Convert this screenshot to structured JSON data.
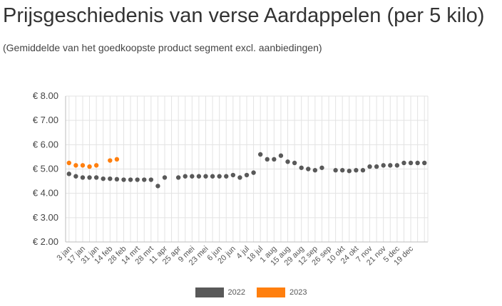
{
  "header": {
    "title": "Prijsgeschiedenis van verse Aardappelen (per 5 kilo)",
    "subtitle": "(Gemiddelde van het goedkoopste product segment excl. aanbiedingen)"
  },
  "colors": {
    "s2022": "#595959",
    "s2023": "#ff7f0e",
    "grid": "#e3e3e3",
    "axis": "#bdbdbd"
  },
  "chart_data": {
    "type": "scatter",
    "ylim": [
      2.0,
      8.0
    ],
    "yticks": [
      8.0,
      7.0,
      6.0,
      5.0,
      4.0,
      3.0,
      2.0
    ],
    "ytick_labels": [
      "€ 8.00",
      "€ 7.00",
      "€ 6.00",
      "€ 5.00",
      "€ 4.00",
      "€ 3.00",
      "€ 2.00"
    ],
    "x_tick_labels": [
      "3 jan",
      "17 jan",
      "31 jan",
      "14 feb",
      "28 feb",
      "14 mrt",
      "28 mrt",
      "11 apr",
      "25 apr",
      "9 mei",
      "23 mei",
      "6 jun",
      "20 jun",
      "4 jul",
      "18 jul",
      "1 aug",
      "15 aug",
      "29 aug",
      "12 sep",
      "26 sep",
      "10 okt",
      "24 okt",
      "7 nov",
      "21 nov",
      "5 dec",
      "19 dec"
    ],
    "n_weeks": 53,
    "legend": "bottom",
    "grid": true,
    "series": [
      {
        "name": "2022",
        "values": [
          4.8,
          4.7,
          4.65,
          4.65,
          4.65,
          4.6,
          4.6,
          4.58,
          4.56,
          4.56,
          4.56,
          4.56,
          4.56,
          4.3,
          4.65,
          null,
          4.65,
          4.7,
          4.7,
          4.7,
          4.7,
          4.7,
          4.7,
          4.7,
          4.75,
          4.65,
          4.75,
          4.85,
          5.6,
          5.4,
          5.4,
          5.55,
          5.3,
          5.25,
          5.05,
          5.0,
          4.95,
          5.05,
          null,
          4.95,
          4.95,
          4.92,
          4.95,
          4.95,
          5.1,
          5.1,
          5.15,
          5.15,
          5.15,
          5.25,
          5.25,
          5.25,
          5.25
        ]
      },
      {
        "name": "2023",
        "values": [
          5.25,
          5.15,
          5.15,
          5.1,
          5.15,
          null,
          5.35,
          5.4
        ]
      }
    ]
  },
  "legend": {
    "label_2022": "2022",
    "label_2023": "2023"
  }
}
